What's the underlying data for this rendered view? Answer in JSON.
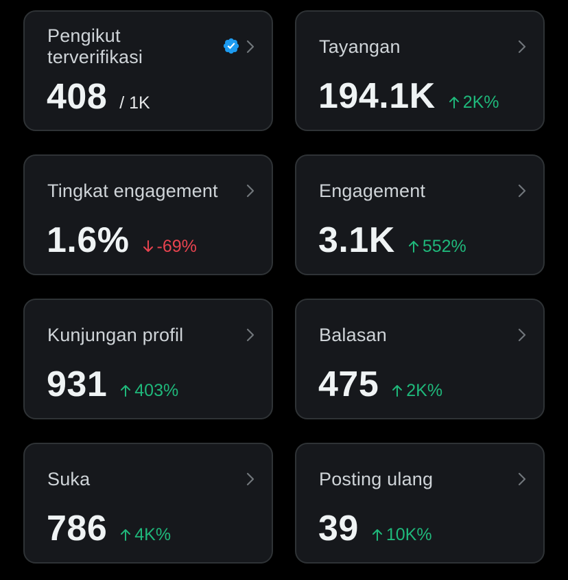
{
  "colors": {
    "background": "#000000",
    "card": "#16181c",
    "card_border": "#2f3336",
    "up": "#1fb87b",
    "down": "#e8434f",
    "verified": "#1d9bf0"
  },
  "cards": [
    {
      "label": "Pengikut terverifikasi",
      "value": "408",
      "denominator": "/ 1K",
      "icon": "verified-badge-icon"
    },
    {
      "label": "Tayangan",
      "value": "194.1K",
      "change": "2K%",
      "direction": "up"
    },
    {
      "label": "Tingkat engagement",
      "value": "1.6%",
      "change": "-69%",
      "direction": "down"
    },
    {
      "label": "Engagement",
      "value": "3.1K",
      "change": "552%",
      "direction": "up"
    },
    {
      "label": "Kunjungan profil",
      "value": "931",
      "change": "403%",
      "direction": "up"
    },
    {
      "label": "Balasan",
      "value": "475",
      "change": "2K%",
      "direction": "up"
    },
    {
      "label": "Suka",
      "value": "786",
      "change": "4K%",
      "direction": "up"
    },
    {
      "label": "Posting ulang",
      "value": "39",
      "change": "10K%",
      "direction": "up"
    }
  ]
}
